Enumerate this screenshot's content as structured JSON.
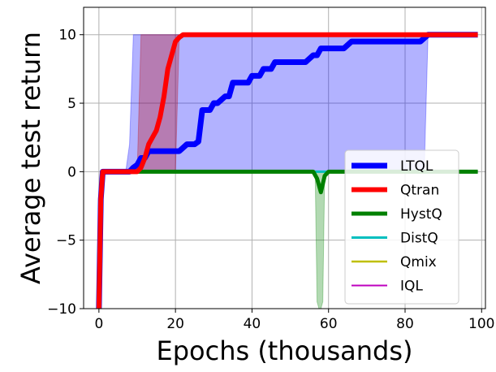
{
  "chart_data": {
    "type": "line",
    "title": "",
    "xlabel": "Epochs (thousands)",
    "ylabel": "Average test return",
    "xlim": [
      -4,
      101
    ],
    "ylim": [
      -10,
      12
    ],
    "x_ticks": [
      0,
      20,
      40,
      60,
      80,
      100
    ],
    "y_ticks": [
      -10,
      -5,
      0,
      5,
      10
    ],
    "x_tick_labels": [
      "0",
      "20",
      "40",
      "60",
      "80",
      "100"
    ],
    "y_tick_labels": [
      "−10",
      "−5",
      "0",
      "5",
      "10"
    ],
    "grid": true,
    "legend_position": "lower-right",
    "series": [
      {
        "name": "LTQL",
        "color": "#0000ff",
        "x": [
          0,
          0.5,
          1,
          8,
          9,
          10,
          11,
          12,
          13,
          20,
          21,
          23,
          24,
          25,
          26,
          27,
          28,
          29,
          30,
          31,
          33,
          34,
          35,
          36,
          38,
          39,
          40,
          41,
          42,
          43,
          45,
          46,
          48,
          50,
          52,
          54,
          56,
          57,
          58,
          60,
          62,
          64,
          66,
          68,
          70,
          72,
          74,
          76,
          78,
          80,
          82,
          84,
          86,
          88,
          90,
          92,
          94,
          96,
          98,
          99
        ],
        "y": [
          -10,
          -2,
          0,
          0,
          0.3,
          0.5,
          1,
          1,
          1.5,
          1.5,
          1.5,
          2,
          2,
          2,
          2.2,
          4.5,
          4.5,
          4.5,
          5,
          5,
          5.5,
          5.5,
          6.5,
          6.5,
          6.5,
          6.5,
          7,
          7,
          7,
          7.5,
          7.5,
          8,
          8,
          8,
          8,
          8,
          8.5,
          8.5,
          9,
          9,
          9,
          9,
          9.5,
          9.5,
          9.5,
          9.5,
          9.5,
          9.5,
          9.5,
          9.5,
          9.5,
          9.5,
          10,
          10,
          10,
          10,
          10,
          10,
          10,
          10
        ]
      },
      {
        "name": "Qtran",
        "color": "#ff0000",
        "x": [
          0,
          0.5,
          1,
          10,
          11,
          12,
          13,
          14,
          15,
          16,
          17,
          18,
          19,
          20,
          21,
          22,
          23,
          30,
          40,
          50,
          60,
          70,
          80,
          90,
          99
        ],
        "y": [
          -10,
          -2,
          0,
          0,
          0.3,
          1,
          2,
          2.5,
          3,
          4,
          5.5,
          7.5,
          8.5,
          9.5,
          9.8,
          10,
          10,
          10,
          10,
          10,
          10,
          10,
          10,
          10,
          10
        ]
      },
      {
        "name": "HystQ",
        "color": "#008000",
        "x": [
          0,
          0.5,
          1,
          10,
          20,
          30,
          40,
          50,
          56,
          57,
          58,
          59,
          60,
          70,
          80,
          90,
          99
        ],
        "y": [
          -10,
          -2,
          0,
          0,
          0,
          0,
          0,
          0,
          0,
          -0.5,
          -1.5,
          -0.3,
          0,
          0,
          0,
          0,
          0
        ]
      },
      {
        "name": "DistQ",
        "color": "#00bfbf",
        "x": [
          0,
          0.5,
          1,
          50,
          99
        ],
        "y": [
          -10,
          -2,
          0,
          0,
          0
        ]
      },
      {
        "name": "Qmix",
        "color": "#bfbf00",
        "x": [
          0,
          0.5,
          1,
          50,
          99
        ],
        "y": [
          -10,
          -2,
          0,
          0,
          0
        ]
      },
      {
        "name": "IQL",
        "color": "#bf00bf",
        "x": [
          0,
          0.5,
          1,
          50,
          99
        ],
        "y": [
          -10,
          -2,
          0,
          0,
          0
        ]
      }
    ],
    "bands": [
      {
        "name": "LTQL-range",
        "color": "#0000ff",
        "x": [
          1,
          7,
          8,
          9,
          21,
          22,
          85,
          86
        ],
        "lower": [
          0,
          0,
          0,
          0,
          0,
          0,
          0,
          10
        ],
        "upper": [
          0,
          0,
          2,
          10,
          10,
          10,
          10,
          10
        ]
      },
      {
        "name": "Qtran-range",
        "color": "#bf0000",
        "x": [
          1,
          10,
          11,
          20,
          21
        ],
        "lower": [
          0,
          0,
          0,
          0,
          10
        ],
        "upper": [
          0,
          0,
          10,
          10,
          10
        ]
      },
      {
        "name": "HystQ-range",
        "color": "#008000",
        "x": [
          56.5,
          57,
          57.5,
          58,
          58.5,
          59
        ],
        "lower": [
          0,
          -9.5,
          -10,
          -10,
          -9.5,
          0
        ],
        "upper": [
          0,
          0,
          0,
          0,
          0,
          0
        ]
      }
    ]
  }
}
